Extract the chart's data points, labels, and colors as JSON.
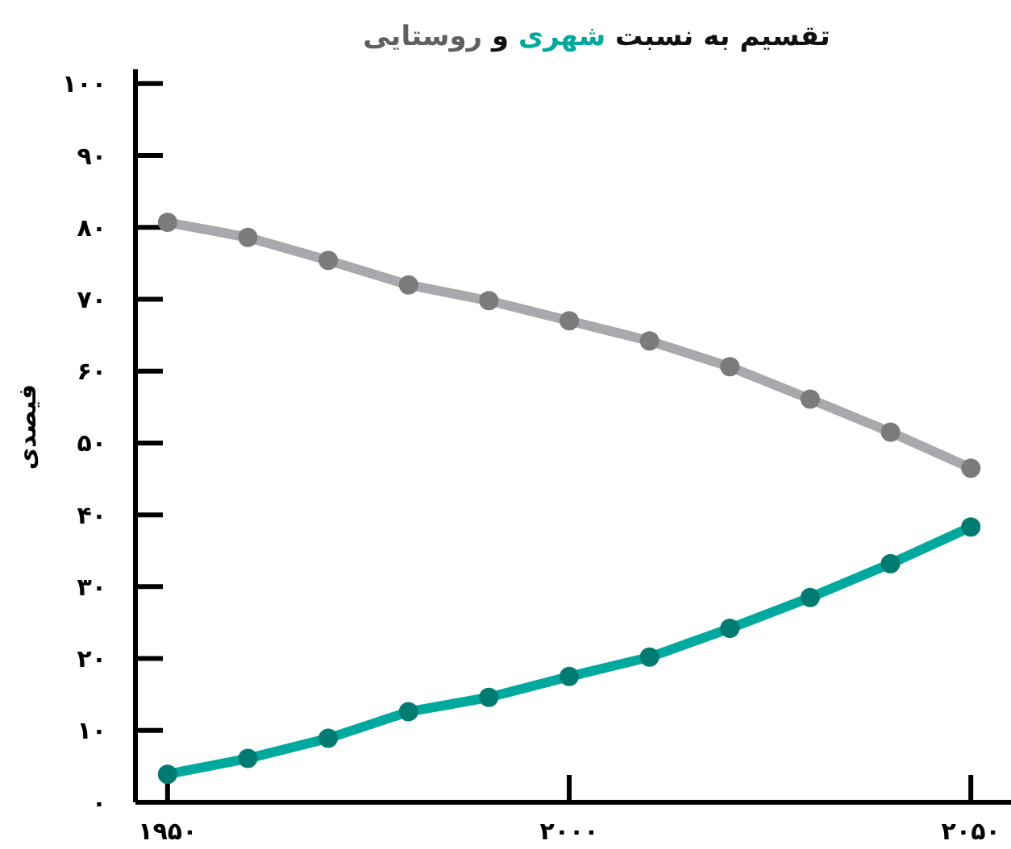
{
  "chart_data": {
    "type": "line",
    "title": "تقسیم به نسبت شهری و روستایی",
    "ylabel": "فیصدی",
    "x": [
      1950,
      1960,
      1970,
      1980,
      1990,
      2000,
      2010,
      2020,
      2030,
      2040,
      2050
    ],
    "series": [
      {
        "color": "#a7a9ac",
        "values": [
          80.7,
          78.6,
          75.4,
          72.0,
          69.8,
          67.0,
          64.2,
          60.6,
          56.1,
          51.5,
          46.5
        ]
      },
      {
        "color": "#00a99d",
        "values": [
          3.9,
          6.1,
          8.9,
          12.6,
          14.6,
          17.5,
          20.2,
          24.2,
          28.5,
          33.2,
          38.3
        ]
      }
    ],
    "xlim": [
      1946,
      2055
    ],
    "xticks": [
      {
        "value": 1950,
        "label": "۱۹۵۰"
      },
      {
        "value": 2000,
        "label": "۲۰۰۰"
      },
      {
        "value": 2050,
        "label": "۲۰۵۰"
      }
    ],
    "ylim": [
      0,
      102
    ],
    "yticks": [
      {
        "value": 0,
        "label": "۰"
      },
      {
        "value": 10,
        "label": "۱۰"
      },
      {
        "value": 20,
        "label": "۲۰"
      },
      {
        "value": 30,
        "label": "۳۰"
      },
      {
        "value": 40,
        "label": "۴۰"
      },
      {
        "value": 50,
        "label": "۵۰"
      },
      {
        "value": 60,
        "label": "۶۰"
      },
      {
        "value": 70,
        "label": "۷۰"
      },
      {
        "value": 80,
        "label": "۸۰"
      },
      {
        "value": 90,
        "label": "۹۰"
      },
      {
        "value": 100,
        "label": "۱۰۰"
      }
    ],
    "grid": false,
    "marker": "circle",
    "line_style": "solid"
  }
}
